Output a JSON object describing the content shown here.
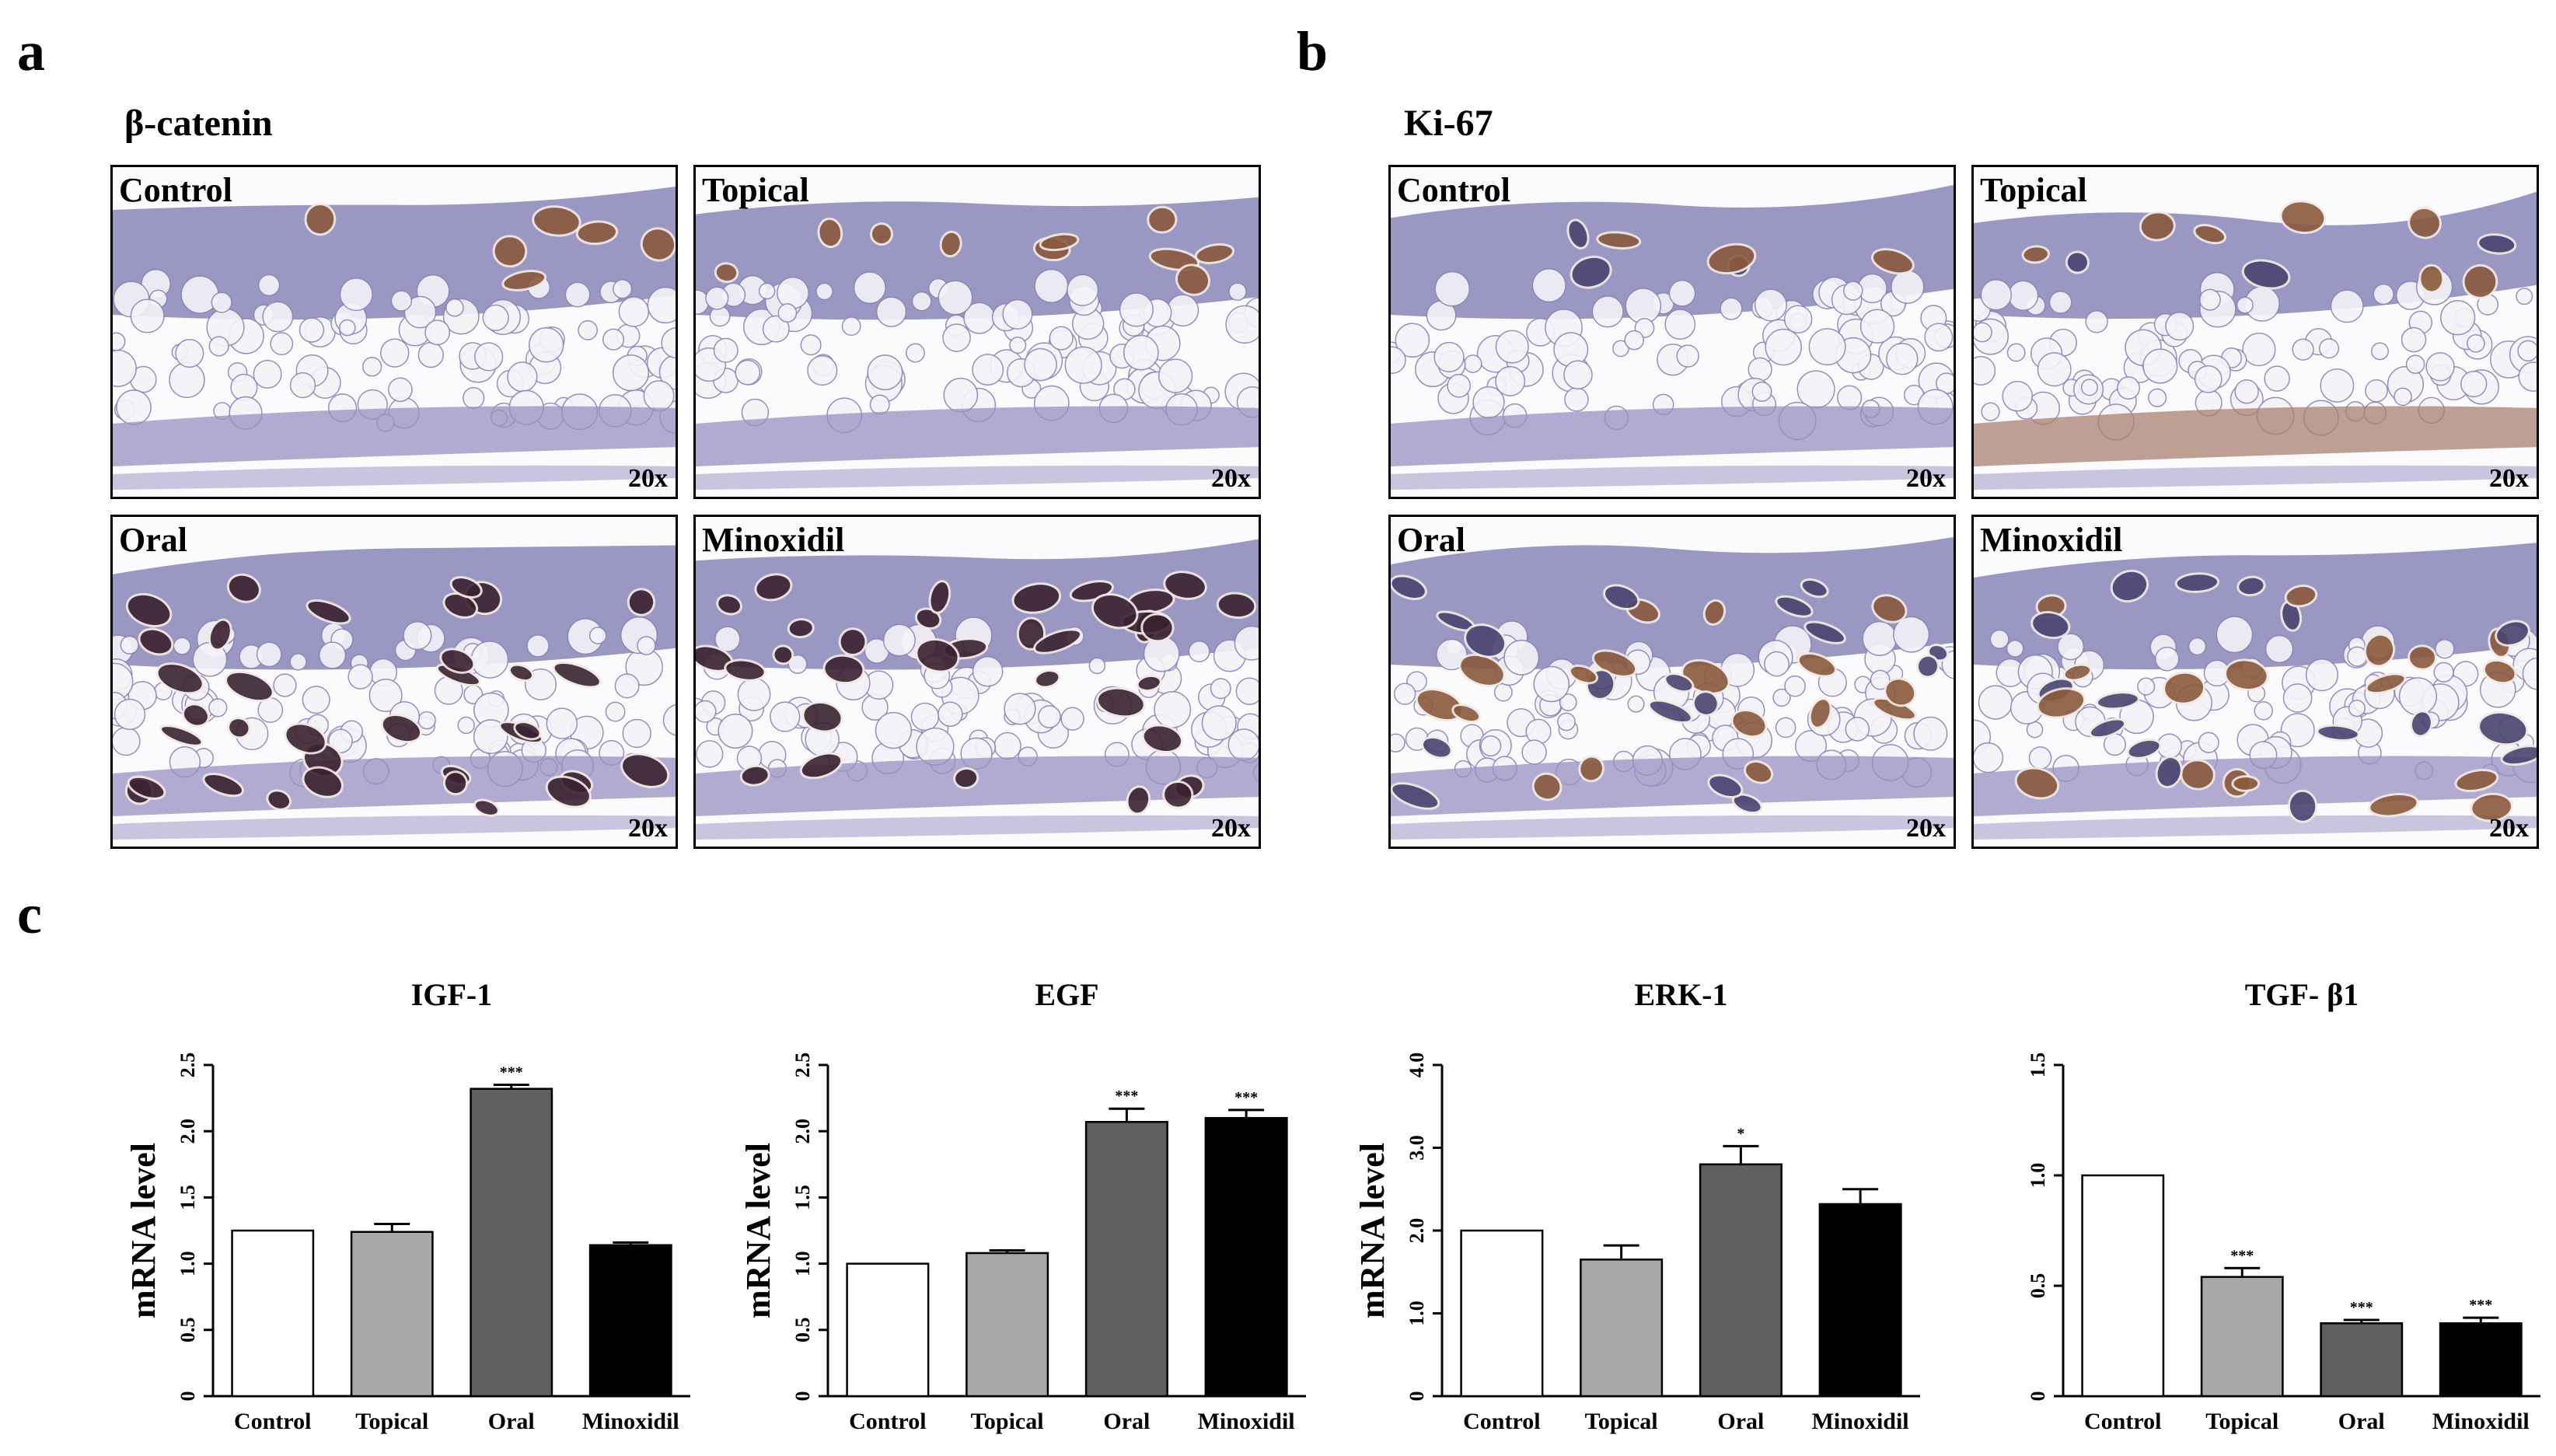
{
  "panels": {
    "a": {
      "letter": "a",
      "stain": "β-catenin"
    },
    "b": {
      "letter": "b",
      "stain": "Ki-67"
    },
    "c": {
      "letter": "c"
    }
  },
  "histology": {
    "magnification": "20x",
    "groups": [
      "Control",
      "Topical",
      "Oral",
      "Minoxidil"
    ],
    "colors": {
      "tissue": "#8a85b8",
      "fat": "#f4f3f8",
      "follicle_dark": "#3a2230",
      "follicle_brown": "#8a5a3c",
      "muscle": "#9a90c2",
      "muscle_brown": "#a98070"
    }
  },
  "chart_data": [
    {
      "type": "bar",
      "title": "IGF-1",
      "ylabel": "mRNA level",
      "ylim": [
        0,
        2.5
      ],
      "yticks": [
        "0",
        "0.5",
        "1.0",
        "1.5",
        "2.0",
        "2.5"
      ],
      "categories": [
        "Control",
        "Topical",
        "Oral",
        "Minoxidil"
      ],
      "values": [
        1.25,
        1.24,
        2.32,
        1.14
      ],
      "errors": [
        0,
        0.06,
        0.03,
        0.02
      ],
      "significance": [
        "",
        "",
        "***",
        ""
      ],
      "colors": [
        "#ffffff",
        "#a8a8ab",
        "#5f5f5f",
        "#000000"
      ]
    },
    {
      "type": "bar",
      "title": "EGF",
      "ylabel": "mRNA level",
      "ylim": [
        0,
        2.5
      ],
      "yticks": [
        "0",
        "0.5",
        "1.0",
        "1.5",
        "2.0",
        "2.5"
      ],
      "categories": [
        "Control",
        "Topical",
        "Oral",
        "Minoxidil"
      ],
      "values": [
        1.0,
        1.08,
        2.07,
        2.1
      ],
      "errors": [
        0,
        0.02,
        0.1,
        0.06
      ],
      "significance": [
        "",
        "",
        "***",
        "***"
      ],
      "colors": [
        "#ffffff",
        "#a8a8ab",
        "#5f5f5f",
        "#000000"
      ]
    },
    {
      "type": "bar",
      "title": "ERK-1",
      "ylabel": "mRNA level",
      "ylim": [
        0,
        4.0
      ],
      "yticks": [
        "0",
        "1.0",
        "2.0",
        "3.0",
        "4.0"
      ],
      "categories": [
        "Control",
        "Topical",
        "Oral",
        "Minoxidil"
      ],
      "values": [
        2.0,
        1.65,
        2.8,
        2.32
      ],
      "errors": [
        0,
        0.17,
        0.22,
        0.18
      ],
      "significance": [
        "",
        "",
        "*",
        ""
      ],
      "colors": [
        "#ffffff",
        "#a8a8ab",
        "#5f5f5f",
        "#000000"
      ]
    },
    {
      "type": "bar",
      "title": "TGF- β1",
      "ylabel": "",
      "ylim": [
        0,
        1.5
      ],
      "yticks": [
        "0",
        "0.5",
        "1.0",
        "1.5"
      ],
      "categories": [
        "Control",
        "Topical",
        "Oral",
        "Minoxidil"
      ],
      "values": [
        1.0,
        0.54,
        0.33,
        0.33
      ],
      "errors": [
        0,
        0.04,
        0.015,
        0.025
      ],
      "significance": [
        "",
        "***",
        "***",
        "***"
      ],
      "colors": [
        "#ffffff",
        "#a8a8ab",
        "#5f5f5f",
        "#000000"
      ]
    }
  ]
}
